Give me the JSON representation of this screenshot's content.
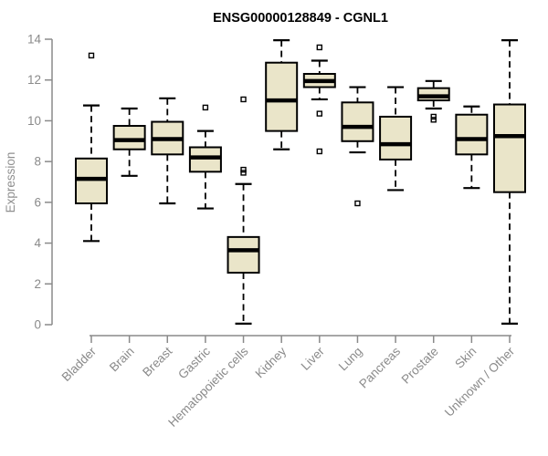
{
  "chart_data": {
    "type": "box",
    "title": "ENSG00000128849 - CGNL1",
    "xlabel": "",
    "ylabel": "Expression",
    "ylim": [
      0,
      14
    ],
    "yticks": [
      0,
      2,
      4,
      6,
      8,
      10,
      12,
      14
    ],
    "grid": false,
    "legend": false,
    "categories": [
      "Bladder",
      "Brain",
      "Breast",
      "Gastric",
      "Hematopoietic cells",
      "Kidney",
      "Liver",
      "Lung",
      "Pancreas",
      "Prostate",
      "Skin",
      "Unknown / Other"
    ],
    "boxes": [
      {
        "category": "Bladder",
        "whisker_low": 4.1,
        "q1": 5.95,
        "median": 7.15,
        "q3": 8.15,
        "whisker_high": 10.75,
        "outliers": [
          13.2
        ]
      },
      {
        "category": "Brain",
        "whisker_low": 7.3,
        "q1": 8.6,
        "median": 9.05,
        "q3": 9.75,
        "whisker_high": 10.6,
        "outliers": []
      },
      {
        "category": "Breast",
        "whisker_low": 5.95,
        "q1": 8.35,
        "median": 9.1,
        "q3": 9.95,
        "whisker_high": 11.1,
        "outliers": []
      },
      {
        "category": "Gastric",
        "whisker_low": 5.7,
        "q1": 7.5,
        "median": 8.2,
        "q3": 8.7,
        "whisker_high": 9.5,
        "outliers": [
          10.65
        ]
      },
      {
        "category": "Hematopoietic cells",
        "whisker_low": 0.05,
        "q1": 2.55,
        "median": 3.65,
        "q3": 4.3,
        "whisker_high": 6.9,
        "outliers": [
          11.05,
          7.6,
          7.45
        ]
      },
      {
        "category": "Kidney",
        "whisker_low": 8.6,
        "q1": 9.5,
        "median": 11.0,
        "q3": 12.85,
        "whisker_high": 13.95,
        "outliers": []
      },
      {
        "category": "Liver",
        "whisker_low": 11.05,
        "q1": 11.65,
        "median": 11.95,
        "q3": 12.3,
        "whisker_high": 12.95,
        "outliers": [
          13.6,
          10.35,
          8.5
        ]
      },
      {
        "category": "Lung",
        "whisker_low": 8.45,
        "q1": 9.0,
        "median": 9.7,
        "q3": 10.9,
        "whisker_high": 11.65,
        "outliers": [
          5.95
        ]
      },
      {
        "category": "Pancreas",
        "whisker_low": 6.6,
        "q1": 8.1,
        "median": 8.85,
        "q3": 10.2,
        "whisker_high": 11.65,
        "outliers": []
      },
      {
        "category": "Prostate",
        "whisker_low": 10.6,
        "q1": 11.0,
        "median": 11.2,
        "q3": 11.6,
        "whisker_high": 11.95,
        "outliers": [
          10.2,
          10.05
        ]
      },
      {
        "category": "Skin",
        "whisker_low": 6.7,
        "q1": 8.35,
        "median": 9.1,
        "q3": 10.3,
        "whisker_high": 10.7,
        "outliers": []
      },
      {
        "category": "Unknown / Other",
        "whisker_low": 0.05,
        "q1": 6.5,
        "median": 9.25,
        "q3": 10.8,
        "whisker_high": 13.95,
        "outliers": []
      }
    ],
    "colors": {
      "box_fill": "#eae5c9",
      "box_border": "#000000",
      "median": "#000000",
      "whisker": "#000000",
      "outlier": "#000000",
      "axis": "#8a8a8a",
      "tick_label": "#8a8a8a",
      "title": "#000000",
      "background": "#ffffff"
    }
  }
}
